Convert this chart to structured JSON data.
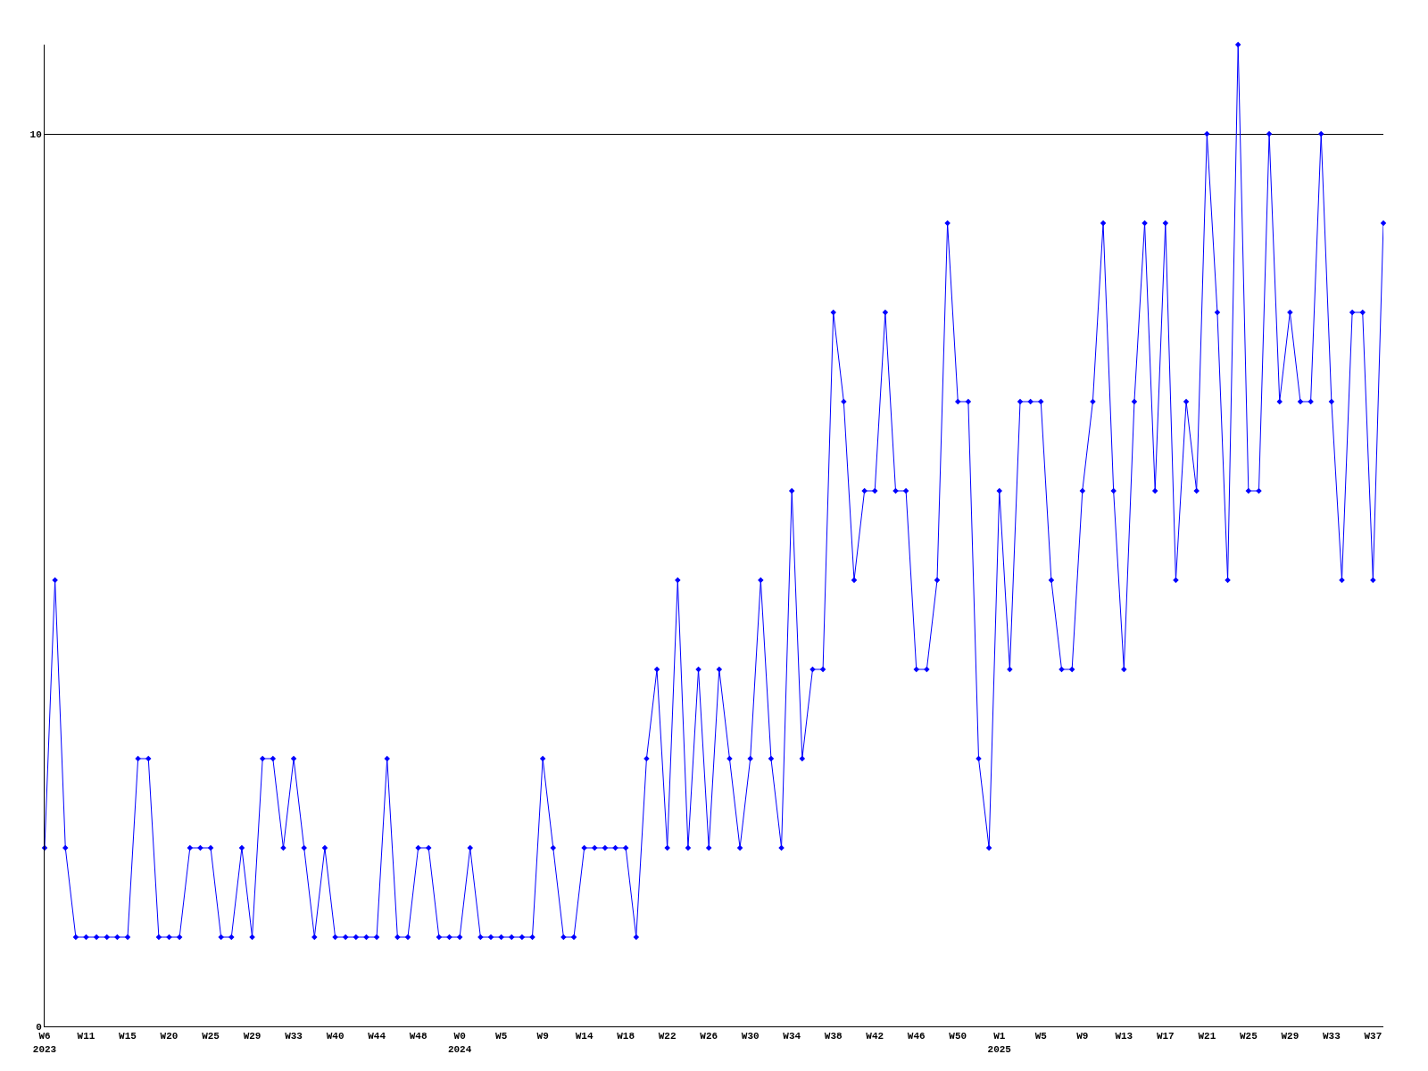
{
  "chart_data": {
    "type": "line",
    "categories": [
      "W6\n2023",
      null,
      null,
      null,
      "W11",
      null,
      null,
      null,
      "W15",
      null,
      null,
      null,
      "W20",
      null,
      null,
      null,
      "W25",
      null,
      null,
      null,
      "W29",
      null,
      null,
      null,
      "W33",
      null,
      null,
      null,
      "W40",
      null,
      null,
      null,
      "W44",
      null,
      null,
      null,
      "W48",
      null,
      null,
      null,
      "W0\n2024",
      null,
      null,
      null,
      "W5",
      null,
      null,
      null,
      "W9",
      null,
      null,
      null,
      "W14",
      null,
      null,
      null,
      "W18",
      null,
      null,
      null,
      "W22",
      null,
      null,
      null,
      "W26",
      null,
      null,
      null,
      "W30",
      null,
      null,
      null,
      "W34",
      null,
      null,
      null,
      "W38",
      null,
      null,
      null,
      "W42",
      null,
      null,
      null,
      "W46",
      null,
      null,
      null,
      "W50",
      null,
      null,
      null,
      "W1\n2025",
      null,
      null,
      null,
      "W5",
      null,
      null,
      null,
      "W9",
      null,
      null,
      null,
      "W13",
      null,
      null,
      null,
      "W17",
      null,
      null,
      null,
      "W21",
      null,
      null,
      null,
      "W25",
      null,
      null,
      null,
      "W29",
      null,
      null,
      null,
      "W33",
      null,
      null,
      null,
      "W37",
      null
    ],
    "series": [
      {
        "color": "#0000ff",
        "values": [
          2,
          5,
          2,
          1,
          1,
          1,
          1,
          1,
          1,
          3,
          3,
          1,
          1,
          1,
          2,
          2,
          2,
          1,
          1,
          2,
          1,
          3,
          3,
          2,
          3,
          2,
          1,
          2,
          1,
          1,
          1,
          1,
          1,
          3,
          1,
          1,
          2,
          2,
          1,
          1,
          1,
          2,
          1,
          1,
          1,
          1,
          1,
          1,
          3,
          2,
          1,
          1,
          2,
          2,
          2,
          2,
          2,
          1,
          3,
          4,
          2,
          5,
          2,
          4,
          2,
          4,
          3,
          2,
          3,
          5,
          3,
          2,
          6,
          3,
          4,
          4,
          8,
          7,
          5,
          6,
          6,
          8,
          6,
          6,
          4,
          4,
          5,
          9,
          7,
          7,
          3,
          2,
          6,
          4,
          7,
          7,
          7,
          5,
          4,
          4,
          6,
          7,
          9,
          6,
          4,
          7,
          9,
          6,
          9,
          5,
          7,
          6,
          10,
          8,
          5,
          11,
          6,
          6,
          10,
          7,
          8,
          7,
          7,
          10,
          7,
          5,
          8,
          8,
          5,
          9
        ]
      }
    ],
    "ylim": [
      0,
      11
    ],
    "yticks": [
      0,
      10
    ],
    "grid": "y",
    "legend": false,
    "marker": "diamond",
    "line_style": "solid"
  }
}
